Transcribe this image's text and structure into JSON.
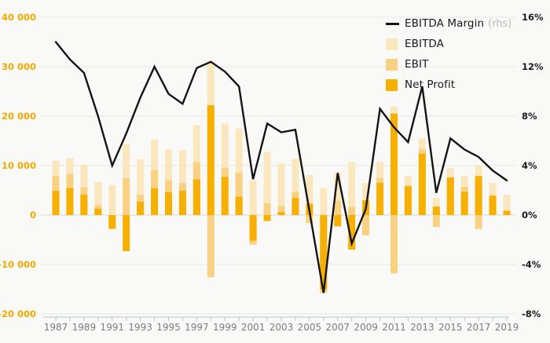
{
  "chart_data": {
    "type": "bar",
    "subtype": "overlay-bars-with-line",
    "title": "",
    "years": [
      1987,
      1988,
      1989,
      1990,
      1991,
      1992,
      1993,
      1994,
      1995,
      1996,
      1997,
      1998,
      1999,
      2000,
      2001,
      2002,
      2003,
      2004,
      2005,
      2006,
      2007,
      2008,
      2009,
      2010,
      2011,
      2012,
      2013,
      2014,
      2015,
      2016,
      2017,
      2018,
      2019
    ],
    "series": [
      {
        "name": "EBITDA",
        "type": "bar",
        "axis": "left",
        "color": "#fbe7bd",
        "values": [
          11000,
          11500,
          10200,
          6700,
          6000,
          14400,
          11300,
          15300,
          13300,
          13100,
          18200,
          30900,
          18500,
          17500,
          7000,
          12800,
          10500,
          11400,
          8100,
          5500,
          8600,
          10700,
          6500,
          10800,
          22000,
          7900,
          15500,
          3500,
          9500,
          7900,
          10000,
          6500,
          4100
        ]
      },
      {
        "name": "EBIT",
        "type": "bar",
        "axis": "left",
        "color": "#f9d182",
        "values": [
          7900,
          8300,
          5600,
          2000,
          -2000,
          7500,
          4100,
          9100,
          7000,
          6500,
          10700,
          -12600,
          9500,
          8600,
          -6000,
          2400,
          1800,
          4700,
          -1600,
          -15700,
          2900,
          1600,
          -4100,
          7500,
          -11800,
          6000,
          13300,
          -2400,
          7600,
          5700,
          -2800,
          4000,
          1000
        ]
      },
      {
        "name": "Net Profit",
        "type": "bar",
        "axis": "left",
        "color": "#f7b000",
        "values": [
          4900,
          5500,
          4100,
          1300,
          -2800,
          -7300,
          2700,
          5400,
          4600,
          4900,
          7200,
          22200,
          7700,
          3700,
          -5200,
          -1200,
          600,
          3500,
          2300,
          -15000,
          -2300,
          -7000,
          3000,
          6500,
          20500,
          5800,
          12400,
          1700,
          7600,
          4700,
          7900,
          3900,
          800
        ]
      },
      {
        "name": "EBITDA Margin",
        "type": "line",
        "axis": "right",
        "color": "#141414",
        "unit": "%",
        "values": [
          14.0,
          12.6,
          11.5,
          8.0,
          4.0,
          6.6,
          9.5,
          12.0,
          9.8,
          9.0,
          11.9,
          12.4,
          11.6,
          10.4,
          2.9,
          7.4,
          6.7,
          6.9,
          0.3,
          -6.3,
          3.4,
          -2.3,
          0.5,
          8.6,
          7.1,
          5.9,
          10.4,
          1.8,
          6.2,
          5.3,
          4.7,
          3.6,
          2.8
        ]
      }
    ],
    "left_axis": {
      "min": -20000,
      "max": 40000,
      "step": 10000,
      "color": "#f5a800",
      "labels": [
        "40 000",
        "30 000",
        "20 000",
        "10 000",
        "0",
        "-10 000",
        "-20 000"
      ],
      "values": [
        40000,
        30000,
        20000,
        10000,
        0,
        -10000,
        -20000
      ]
    },
    "right_axis": {
      "min": -8,
      "max": 16,
      "step": 4,
      "color": "#1a1a1a",
      "labels": [
        "16%",
        "12%",
        "8%",
        "4%",
        "0%",
        "-4%",
        "-8%"
      ],
      "values": [
        16,
        12,
        8,
        4,
        0,
        -4,
        -8
      ]
    },
    "x_axis": {
      "labels": [
        "1987",
        "1989",
        "1991",
        "1993",
        "1995",
        "1997",
        "1999",
        "2001",
        "2003",
        "2005",
        "2007",
        "2009",
        "2011",
        "2013",
        "2015",
        "2017",
        "2019"
      ],
      "tick_every_year": true,
      "color": "#7d7d7d",
      "line_color": "#b7c2d8"
    },
    "grid": {
      "on": true,
      "color": "#e6e6e4",
      "zero_color": "#d9d9d7"
    },
    "legend": [
      {
        "label": "EBITDA Margin",
        "suffix": "(rhs)"
      },
      {
        "label": "EBITDA"
      },
      {
        "label": "EBIT"
      },
      {
        "label": "Net Profit"
      }
    ],
    "legend_position": "top-right"
  }
}
